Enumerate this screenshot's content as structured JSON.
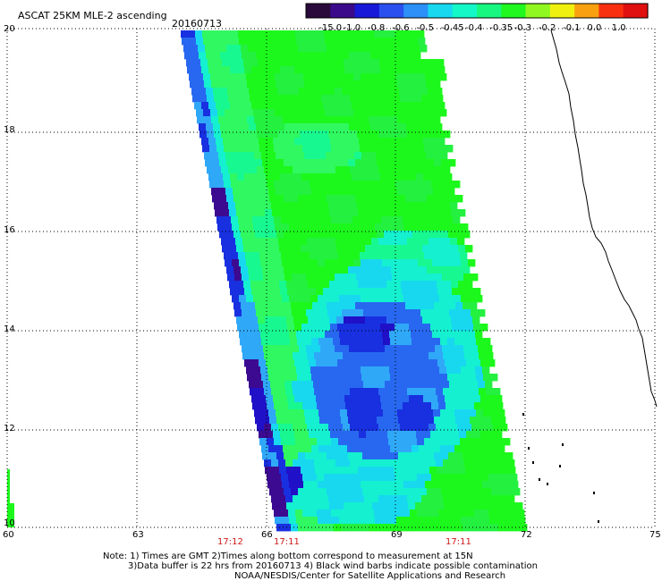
{
  "header": {
    "title": "ASCAT 25KM MLE-2 ascending",
    "date": "20160713"
  },
  "colorbar": {
    "labels": [
      "-15.0",
      "-1.0",
      "-0.8",
      "-0.6",
      "-0.5",
      "-0.45",
      "-0.4",
      "-0.35",
      "-0.3",
      "-0.2",
      "-0.1",
      "0.0",
      "1.0"
    ],
    "colors": [
      "#2a0a3a",
      "#3a0a8a",
      "#1818d8",
      "#2a50f0",
      "#2c90f8",
      "#18d8f0",
      "#14f8c8",
      "#18f880",
      "#20f820",
      "#90f820",
      "#f0f010",
      "#f8a010",
      "#f83010",
      "#e01010"
    ]
  },
  "axes": {
    "lon_labels": [
      "60",
      "63",
      "66",
      "69",
      "72",
      "75"
    ],
    "lat_labels": [
      "20",
      "18",
      "16",
      "14",
      "12",
      "10"
    ]
  },
  "times": [
    "17:12",
    "17:11",
    "17:11"
  ],
  "notes": {
    "line1": "Note: 1) Times are GMT 2)Times along bottom correspond to measurement at 15N",
    "line2": "3)Data buffer is 22 hrs from 20160713 4) Black wind barbs indicate possible contamination",
    "line3": "NOAA/NESDIS/Center for Satellite Applications and Research"
  }
}
